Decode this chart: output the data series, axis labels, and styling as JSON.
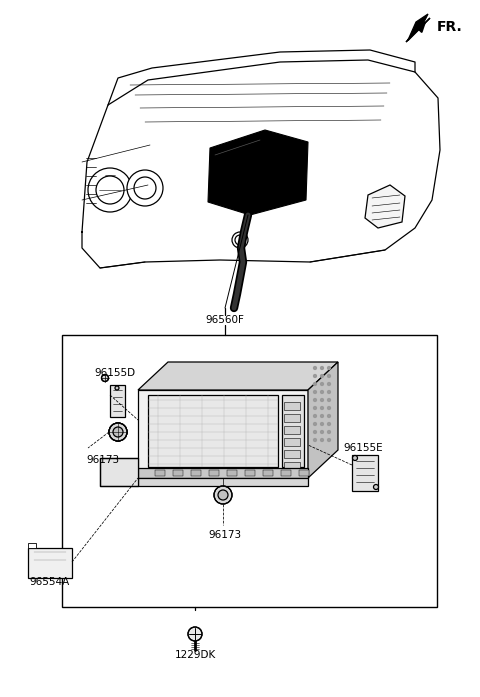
{
  "bg_color": "#ffffff",
  "line_color": "#000000",
  "figsize": [
    4.8,
    6.97
  ],
  "dpi": 100,
  "fr_label": "FR.",
  "label_96560F": "96560F",
  "label_96155D": "96155D",
  "label_96155E": "96155E",
  "label_96173a": "96173",
  "label_96173b": "96173",
  "label_96554A": "96554A",
  "label_1229DK": "1229DK"
}
